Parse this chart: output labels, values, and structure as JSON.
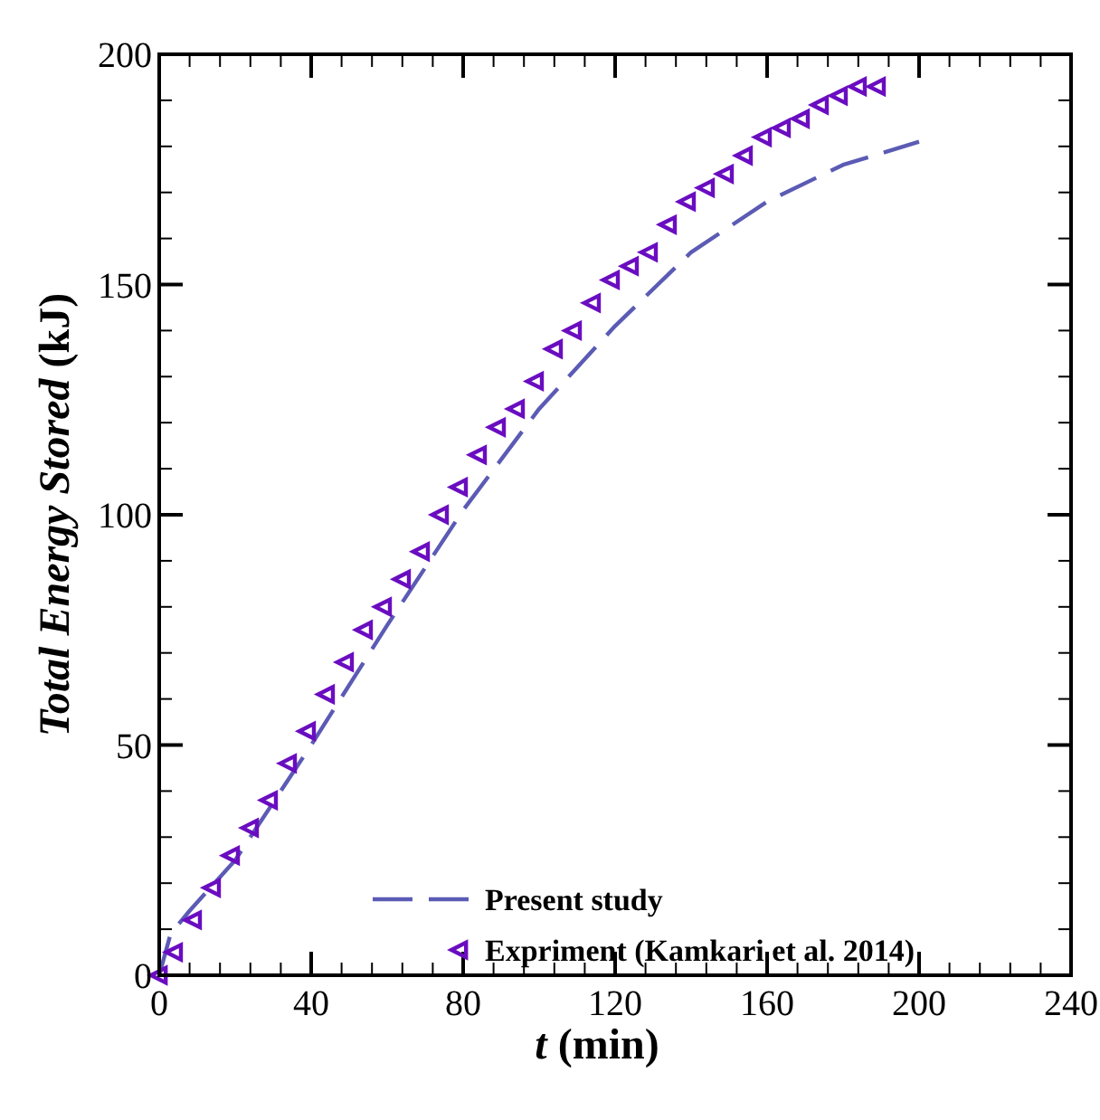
{
  "chart_data": {
    "type": "line",
    "xlabel": "t (min)",
    "ylabel": "Total Energy Stored (kJ)",
    "xlim": [
      0,
      240
    ],
    "ylim": [
      0,
      200
    ],
    "xticks": [
      0,
      {
        "value": 8,
        "label": null
      },
      {
        "value": 16,
        "label": null
      },
      {
        "value": 24,
        "label": null
      },
      {
        "value": 32,
        "label": null
      },
      40,
      {
        "value": 48,
        "label": null
      },
      {
        "value": 56,
        "label": null
      },
      {
        "value": 64,
        "label": null
      },
      {
        "value": 72,
        "label": null
      },
      80,
      {
        "value": 88,
        "label": null
      },
      {
        "value": 96,
        "label": null
      },
      {
        "value": 104,
        "label": null
      },
      {
        "value": 112,
        "label": null
      },
      120,
      {
        "value": 128,
        "label": null
      },
      {
        "value": 136,
        "label": null
      },
      {
        "value": 144,
        "label": null
      },
      {
        "value": 152,
        "label": null
      },
      160,
      {
        "value": 168,
        "label": null
      },
      {
        "value": 176,
        "label": null
      },
      {
        "value": 184,
        "label": null
      },
      {
        "value": 192,
        "label": null
      },
      200,
      {
        "value": 208,
        "label": null
      },
      {
        "value": 216,
        "label": null
      },
      {
        "value": 224,
        "label": null
      },
      {
        "value": 232,
        "label": null
      },
      240
    ],
    "yticks": [
      0,
      {
        "value": 10,
        "label": null
      },
      {
        "value": 20,
        "label": null
      },
      {
        "value": 30,
        "label": null
      },
      {
        "value": 40,
        "label": null
      },
      50,
      {
        "value": 60,
        "label": null
      },
      {
        "value": 70,
        "label": null
      },
      {
        "value": 80,
        "label": null
      },
      {
        "value": 90,
        "label": null
      },
      100,
      {
        "value": 110,
        "label": null
      },
      {
        "value": 120,
        "label": null
      },
      {
        "value": 130,
        "label": null
      },
      {
        "value": 140,
        "label": null
      },
      150,
      {
        "value": 160,
        "label": null
      },
      {
        "value": 170,
        "label": null
      },
      {
        "value": 180,
        "label": null
      },
      {
        "value": 190,
        "label": null
      },
      200
    ],
    "grid": false,
    "legend": "bottom right",
    "series": [
      {
        "name": "Present study",
        "line_style": "dashed",
        "marker": "none",
        "color": "#5b5bb5",
        "x": [
          0,
          3,
          8,
          20,
          40,
          60,
          80,
          100,
          120,
          140,
          160,
          180,
          200
        ],
        "values": [
          0,
          9,
          14,
          25,
          50,
          76,
          101,
          123,
          141,
          157,
          168,
          176,
          181
        ]
      },
      {
        "name": "Expriment (Kamkari et al. 2014)",
        "type": "scatter",
        "marker": "triangle",
        "color": "#6a0dc0",
        "x": [
          0,
          4,
          9,
          14,
          19,
          24,
          29,
          34,
          39,
          44,
          49,
          54,
          59,
          64,
          69,
          74,
          79,
          84,
          89,
          94,
          99,
          104,
          109,
          114,
          119,
          124,
          129,
          134,
          139,
          144,
          149,
          154,
          159,
          164,
          169,
          174,
          179,
          184,
          189
        ],
        "values": [
          0,
          5,
          12,
          19,
          26,
          32,
          38,
          46,
          53,
          61,
          68,
          75,
          80,
          86,
          92,
          100,
          106,
          113,
          119,
          123,
          129,
          136,
          140,
          146,
          151,
          154,
          157,
          163,
          168,
          171,
          174,
          178,
          182,
          184,
          186,
          189,
          191,
          193,
          193
        ]
      }
    ]
  }
}
